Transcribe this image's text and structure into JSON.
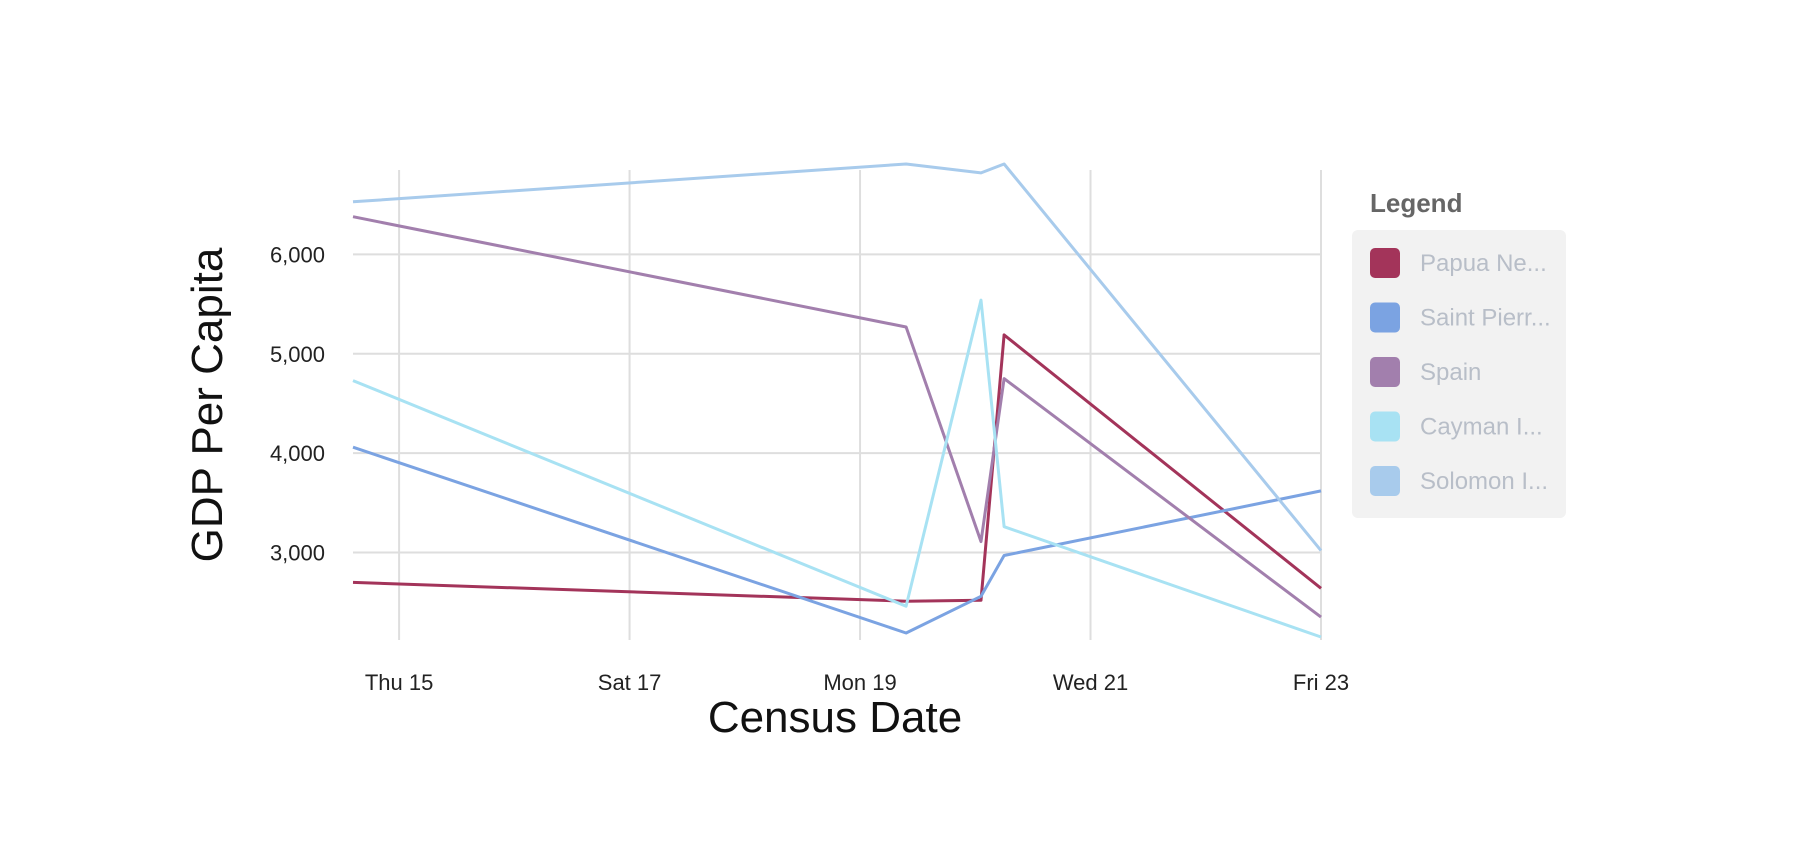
{
  "chart_data": {
    "type": "line",
    "xlabel": "Census Date",
    "ylabel": "GDP Per Capita",
    "x_ticks": [
      "Thu 15",
      "Sat 17",
      "Mon 19",
      "Wed 21",
      "Fri 23"
    ],
    "x_tick_days": [
      15,
      17,
      19,
      21,
      23
    ],
    "x_range": [
      14.6,
      23
    ],
    "y_ticks": [
      3000,
      4000,
      5000,
      6000
    ],
    "y_tick_labels": [
      "3,000",
      "4,000",
      "5,000",
      "6,000"
    ],
    "ylim": [
      2120,
      6930
    ],
    "grid": true,
    "legend": {
      "title": "Legend",
      "position": "right"
    },
    "series": [
      {
        "name": "Papua Ne...",
        "color": "#a3345a",
        "x": [
          14.6,
          19.4,
          20.05,
          20.25,
          23
        ],
        "y": [
          2700,
          2510,
          2520,
          5190,
          2640
        ]
      },
      {
        "name": "Saint Pierr...",
        "color": "#7ba3e2",
        "x": [
          14.6,
          19.4,
          20.05,
          20.25,
          23
        ],
        "y": [
          4060,
          2190,
          2560,
          2970,
          3620
        ]
      },
      {
        "name": "Spain",
        "color": "#a27fad",
        "x": [
          14.6,
          19.4,
          20.05,
          20.25,
          23
        ],
        "y": [
          6380,
          5270,
          3110,
          4750,
          2350
        ]
      },
      {
        "name": "Cayman I...",
        "color": "#a8e2f3",
        "x": [
          14.6,
          19.4,
          20.05,
          20.25,
          23
        ],
        "y": [
          4730,
          2460,
          5540,
          3260,
          2150
        ]
      },
      {
        "name": "Solomon I...",
        "color": "#a8cbec",
        "x": [
          14.6,
          19.4,
          20.05,
          20.25,
          23
        ],
        "y": [
          6530,
          6910,
          6820,
          6910,
          3020
        ]
      }
    ]
  }
}
